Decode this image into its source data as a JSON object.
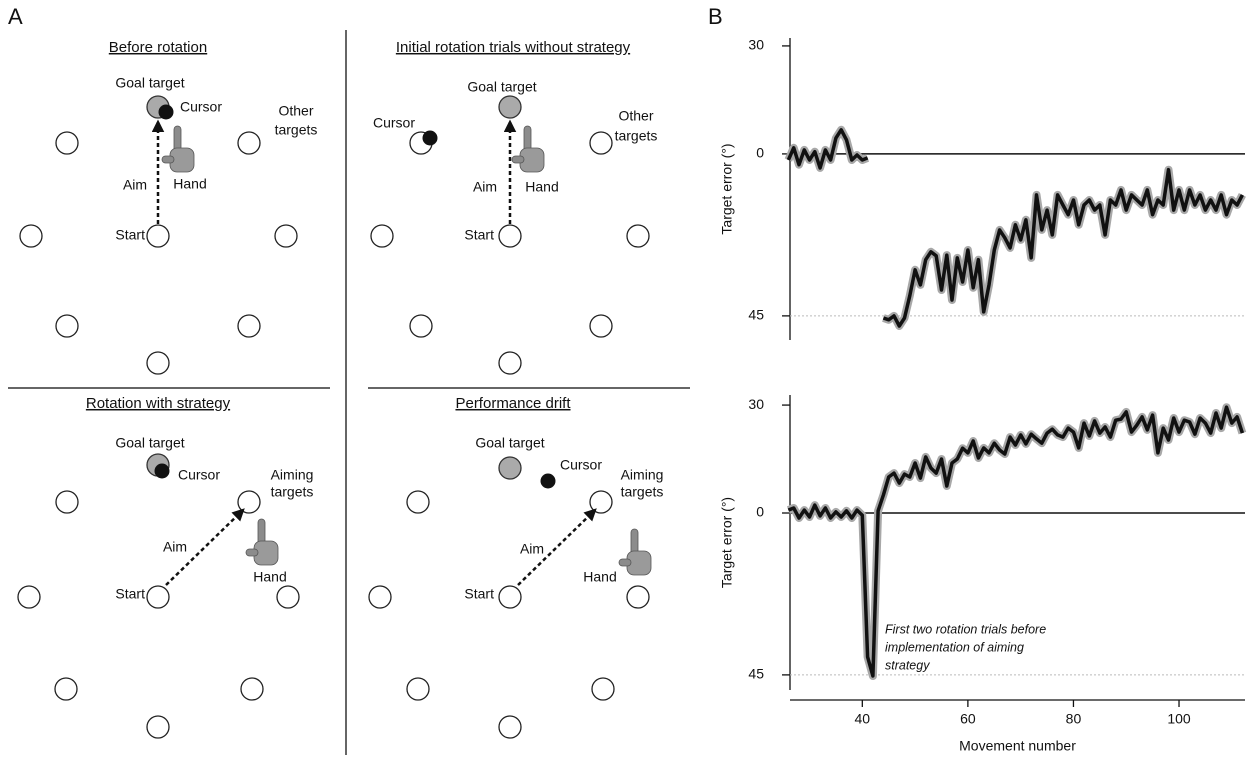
{
  "panel_a": {
    "label": "A",
    "panels": [
      {
        "title": "Before rotation",
        "goal": "Goal target",
        "cursor": "Cursor",
        "targets": [
          "Other",
          "targets"
        ],
        "aim": "Aim",
        "hand": "Hand",
        "start": "Start"
      },
      {
        "title": "Initial rotation trials without strategy",
        "goal": "Goal target",
        "cursor": "Cursor",
        "targets": [
          "Other",
          "targets"
        ],
        "aim": "Aim",
        "hand": "Hand",
        "start": "Start"
      },
      {
        "title": "Rotation with strategy",
        "goal": "Goal target",
        "cursor": "Cursor",
        "targets": [
          "Aiming",
          "targets"
        ],
        "aim": "Aim",
        "hand": "Hand",
        "start": "Start"
      },
      {
        "title": "Performance drift",
        "goal": "Goal target",
        "cursor": "Cursor",
        "targets": [
          "Aiming",
          "targets"
        ],
        "aim": "Aim",
        "hand": "Hand",
        "start": "Start"
      }
    ]
  },
  "panel_b": {
    "label": "B"
  },
  "chart_data": [
    {
      "type": "line",
      "y_label": "Target error (°)",
      "xlim": [
        26.3,
        112.5
      ],
      "ylim": [
        -51.7,
        32.2
      ],
      "yticks": [
        30,
        0,
        {
          "value": -45,
          "label": "45"
        }
      ],
      "reference_lines": [
        {
          "value": 0,
          "style": "solid"
        },
        {
          "value": -45,
          "style": "dotted"
        }
      ],
      "x": [
        26,
        27,
        28,
        29,
        30,
        31,
        32,
        33,
        34,
        35,
        36,
        37,
        38,
        39,
        40,
        41,
        42,
        43,
        44,
        45,
        46,
        47,
        48,
        49,
        50,
        51,
        52,
        53,
        54,
        55,
        56,
        57,
        58,
        59,
        60,
        61,
        62,
        63,
        64,
        65,
        66,
        67,
        68,
        69,
        70,
        71,
        72,
        73,
        74,
        75,
        76,
        77,
        78,
        79,
        80,
        81,
        82,
        83,
        84,
        85,
        86,
        87,
        88,
        89,
        90,
        91,
        92,
        93,
        94,
        95,
        96,
        97,
        98,
        99,
        100,
        101,
        102,
        103,
        104,
        105,
        106,
        107,
        108,
        109,
        110,
        111,
        112
      ],
      "series": [
        {
          "color": "#111111",
          "band_color": "#a8a8a8",
          "values": [
            -1.7,
            1.7,
            -3,
            1.1,
            -1.7,
            0.6,
            -3.9,
            1.1,
            -1.7,
            4.4,
            6.7,
            3.9,
            -1.7,
            -0.3,
            -1.7,
            -1.1,
            null,
            null,
            -45.6,
            -46.1,
            -45,
            -47.8,
            -45.6,
            -39.4,
            -32.2,
            -36.4,
            -29.4,
            -27.2,
            -28.3,
            -37.8,
            -28.1,
            -40.6,
            -28.9,
            -35.6,
            -26.7,
            -37.2,
            -29.4,
            -43.9,
            -36.4,
            -26.7,
            -21.1,
            -23.3,
            -26.1,
            -19.7,
            -23.9,
            -18.3,
            -28.9,
            -11.4,
            -21.1,
            -15.6,
            -22.5,
            -11.4,
            -14.2,
            -16.9,
            -12.8,
            -19.7,
            -14.2,
            -12.8,
            -15.6,
            -14.2,
            -22.5,
            -12.8,
            -14.2,
            -10,
            -15.6,
            -11.4,
            -12.8,
            -14.2,
            -10,
            -16.9,
            -12.8,
            -14.2,
            -4.4,
            -15.6,
            -10,
            -15.6,
            -10,
            -14.2,
            -11.4,
            -15.6,
            -12.8,
            -15.6,
            -11.4,
            -16.9,
            -12.8,
            -14.2,
            -11.4
          ]
        }
      ]
    },
    {
      "type": "line",
      "y_label": "Target error (°)",
      "x_label": "Movement number",
      "xlim": [
        26.3,
        112.5
      ],
      "ylim": [
        -49.2,
        32.8
      ],
      "xticks": [
        40,
        60,
        80,
        100
      ],
      "yticks": [
        30,
        0,
        {
          "value": -45,
          "label": "45"
        }
      ],
      "reference_lines": [
        {
          "value": 0,
          "style": "solid"
        },
        {
          "value": -45,
          "style": "dotted"
        }
      ],
      "annotation": [
        "First two rotation trials before",
        "implementation of aiming",
        "strategy"
      ],
      "x": [
        26,
        27,
        28,
        29,
        30,
        31,
        32,
        33,
        34,
        35,
        36,
        37,
        38,
        39,
        40,
        41,
        42,
        43,
        44,
        45,
        46,
        47,
        48,
        49,
        50,
        51,
        52,
        53,
        54,
        55,
        56,
        57,
        58,
        59,
        60,
        61,
        62,
        63,
        64,
        65,
        66,
        67,
        68,
        69,
        70,
        71,
        72,
        73,
        74,
        75,
        76,
        77,
        78,
        79,
        80,
        81,
        82,
        83,
        84,
        85,
        86,
        87,
        88,
        89,
        90,
        91,
        92,
        93,
        94,
        95,
        96,
        97,
        98,
        99,
        100,
        101,
        102,
        103,
        104,
        105,
        106,
        107,
        108,
        109,
        110,
        111,
        112
      ],
      "series": [
        {
          "color": "#111111",
          "band_color": "#a8a8a8",
          "values": [
            0.8,
            1.4,
            -1.4,
            0.8,
            -1.1,
            2.2,
            -0.8,
            1.4,
            -1.4,
            0.3,
            -1.1,
            0.6,
            -1.4,
            0.8,
            -0.6,
            -40,
            -45.3,
            0.6,
            5,
            10,
            11.1,
            8.3,
            10.8,
            10,
            13.9,
            9.7,
            15.6,
            12.5,
            11.1,
            15,
            7.5,
            13.9,
            15,
            18,
            16.7,
            20,
            15.3,
            18.1,
            16.7,
            19.4,
            17.5,
            16.4,
            21.1,
            18.9,
            21.7,
            19.2,
            21.9,
            20.6,
            19.4,
            22.2,
            23.3,
            21.7,
            21.1,
            23.6,
            22.5,
            18.1,
            25,
            21.4,
            25.6,
            22.2,
            23.9,
            21.1,
            25.8,
            26.1,
            28.1,
            22.5,
            24.4,
            26.7,
            23.1,
            27.2,
            16.7,
            23.6,
            20.3,
            26.4,
            22.5,
            25.8,
            25.3,
            21.9,
            26.4,
            25,
            22.2,
            27.8,
            23.6,
            29.4,
            25,
            26.7,
            22.2
          ]
        }
      ]
    }
  ]
}
